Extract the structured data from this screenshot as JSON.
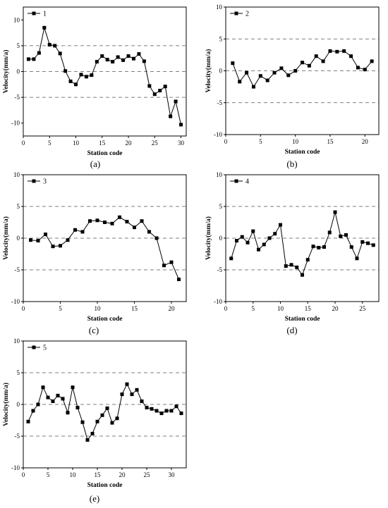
{
  "figure": {
    "panels": [
      {
        "id": "a",
        "caption": "(a)",
        "legend": "1",
        "xlabel": "Station code",
        "ylabel": "Velocity(mm/a)"
      },
      {
        "id": "b",
        "caption": "(b)",
        "legend": "2",
        "xlabel": "Station code",
        "ylabel": "Velocity(mm/a)"
      },
      {
        "id": "c",
        "caption": "(c)",
        "legend": "3",
        "xlabel": "Station code",
        "ylabel": "Velocity(mm/a)"
      },
      {
        "id": "d",
        "caption": "(d)",
        "legend": "4",
        "xlabel": "Station code",
        "ylabel": "Velocity(mm/a)"
      },
      {
        "id": "e",
        "caption": "(e)",
        "legend": "5",
        "xlabel": "Station code",
        "ylabel": "Velocity(mm/a)"
      }
    ]
  },
  "chart_data": [
    {
      "type": "line",
      "title": "",
      "xlabel": "Station code",
      "ylabel": "Velocity(mm/a)",
      "xlim": [
        0,
        31
      ],
      "ylim": [
        -12.5,
        12.5
      ],
      "xticks": [
        0,
        5,
        10,
        15,
        20,
        25,
        30
      ],
      "yticks": [
        -10,
        -5,
        0,
        5,
        10
      ],
      "dashed_y": [
        5,
        0,
        -5
      ],
      "legend_position": "top-left",
      "series": [
        {
          "name": "1",
          "x": [
            1,
            2,
            3,
            4,
            5,
            6,
            7,
            8,
            9,
            10,
            11,
            12,
            13,
            14,
            15,
            16,
            17,
            18,
            19,
            20,
            21,
            22,
            23,
            24,
            25,
            26,
            27,
            28,
            29,
            30
          ],
          "y": [
            2.4,
            2.4,
            3.6,
            8.5,
            5.2,
            5.0,
            3.5,
            0.1,
            -1.9,
            -2.5,
            -0.6,
            -1.0,
            -0.7,
            1.9,
            3.0,
            2.3,
            1.9,
            2.8,
            2.2,
            3.0,
            2.5,
            3.4,
            2.0,
            -2.8,
            -4.4,
            -3.7,
            -2.9,
            -8.7,
            -5.8,
            -10.3
          ]
        }
      ]
    },
    {
      "type": "line",
      "title": "",
      "xlabel": "Station code",
      "ylabel": "Velocity(mm/a)",
      "xlim": [
        0,
        22
      ],
      "ylim": [
        -10,
        10
      ],
      "xticks": [
        0,
        5,
        10,
        15,
        20
      ],
      "yticks": [
        -10,
        -5,
        0,
        5,
        10
      ],
      "dashed_y": [
        5,
        0,
        -5
      ],
      "legend_position": "top-left",
      "series": [
        {
          "name": "2",
          "x": [
            1,
            2,
            3,
            4,
            5,
            6,
            7,
            8,
            9,
            10,
            11,
            12,
            13,
            14,
            15,
            16,
            17,
            18,
            19,
            20,
            21
          ],
          "y": [
            1.2,
            -1.7,
            -0.3,
            -2.5,
            -0.8,
            -1.5,
            -0.3,
            0.4,
            -0.7,
            0.0,
            1.3,
            0.8,
            2.3,
            1.5,
            3.1,
            3.0,
            3.1,
            2.3,
            0.5,
            0.2,
            1.5
          ]
        }
      ]
    },
    {
      "type": "line",
      "title": "",
      "xlabel": "Station code",
      "ylabel": "Velocity(mm/a)",
      "xlim": [
        0,
        22
      ],
      "ylim": [
        -10,
        10
      ],
      "xticks": [
        0,
        5,
        10,
        15,
        20
      ],
      "yticks": [
        -10,
        -5,
        0,
        5,
        10
      ],
      "dashed_y": [
        5,
        0,
        -5
      ],
      "legend_position": "top-left",
      "series": [
        {
          "name": "3",
          "x": [
            1,
            2,
            3,
            4,
            5,
            6,
            7,
            8,
            9,
            10,
            11,
            12,
            13,
            14,
            15,
            16,
            17,
            18,
            19,
            20,
            21
          ],
          "y": [
            -0.3,
            -0.4,
            0.6,
            -1.3,
            -1.2,
            -0.3,
            1.3,
            1.0,
            2.7,
            2.8,
            2.5,
            2.3,
            3.3,
            2.6,
            1.7,
            2.7,
            1.0,
            0.0,
            -4.3,
            -3.8,
            -6.5
          ]
        }
      ]
    },
    {
      "type": "line",
      "title": "",
      "xlabel": "Station code",
      "ylabel": "Velocity(mm/a)",
      "xlim": [
        0,
        28
      ],
      "ylim": [
        -10,
        10
      ],
      "xticks": [
        0,
        5,
        10,
        15,
        20,
        25
      ],
      "yticks": [
        -10,
        -5,
        0,
        5,
        10
      ],
      "dashed_y": [
        5,
        0,
        -5
      ],
      "legend_position": "top-left",
      "series": [
        {
          "name": "4",
          "x": [
            1,
            2,
            3,
            4,
            5,
            6,
            7,
            8,
            9,
            10,
            11,
            12,
            13,
            14,
            15,
            16,
            17,
            18,
            19,
            20,
            21,
            22,
            23,
            24,
            25,
            26,
            27
          ],
          "y": [
            -3.2,
            -0.4,
            0.2,
            -0.7,
            1.1,
            -1.8,
            -1.0,
            0.0,
            0.7,
            2.1,
            -4.4,
            -4.2,
            -4.6,
            -5.8,
            -3.4,
            -1.3,
            -1.5,
            -1.4,
            0.9,
            4.1,
            0.3,
            0.5,
            -1.4,
            -3.2,
            -0.6,
            -0.8,
            -1.1
          ]
        }
      ]
    },
    {
      "type": "line",
      "title": "",
      "xlabel": "Station code",
      "ylabel": "Velocity(mm/a)",
      "xlim": [
        0,
        33
      ],
      "ylim": [
        -10,
        10
      ],
      "xticks": [
        0,
        5,
        10,
        15,
        20,
        25,
        30
      ],
      "yticks": [
        -10,
        -5,
        0,
        5,
        10
      ],
      "dashed_y": [
        5,
        0,
        -5
      ],
      "legend_position": "top-left",
      "series": [
        {
          "name": "5",
          "x": [
            1,
            2,
            3,
            4,
            5,
            6,
            7,
            8,
            9,
            10,
            11,
            12,
            13,
            14,
            15,
            16,
            17,
            18,
            19,
            20,
            21,
            22,
            23,
            24,
            25,
            26,
            27,
            28,
            29,
            30,
            31,
            32
          ],
          "y": [
            -2.7,
            -1.0,
            0.0,
            2.7,
            1.1,
            0.5,
            1.4,
            0.9,
            -1.3,
            2.7,
            -0.5,
            -2.8,
            -5.6,
            -4.6,
            -2.7,
            -1.7,
            -0.6,
            -2.9,
            -2.2,
            1.6,
            3.2,
            1.6,
            2.3,
            0.5,
            -0.5,
            -0.7,
            -1.0,
            -1.4,
            -1.0,
            -1.0,
            -0.3,
            -1.4
          ]
        }
      ]
    }
  ]
}
